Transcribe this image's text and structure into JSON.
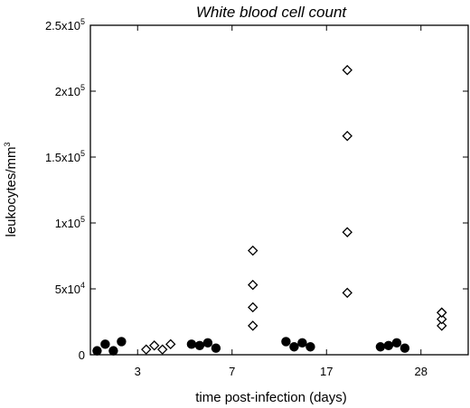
{
  "chart_data": {
    "type": "scatter",
    "title": "White blood cell count",
    "xlabel": "time post-infection (days)",
    "ylabel": "leukocytes/mm3",
    "ylabel_base": "leukocytes/mm",
    "ylabel_sup": "3",
    "categories": [
      "3",
      "7",
      "17",
      "28"
    ],
    "ylim": [
      0,
      250000
    ],
    "y_ticks": [
      {
        "value": 0,
        "label": "0",
        "base": "0",
        "sup": ""
      },
      {
        "value": 50000,
        "label": "5x10^4",
        "base": "5x10",
        "sup": "4"
      },
      {
        "value": 100000,
        "label": "1x10^5",
        "base": "1x10",
        "sup": "5"
      },
      {
        "value": 150000,
        "label": "1.5x10^5",
        "base": "1.5x10",
        "sup": "5"
      },
      {
        "value": 200000,
        "label": "2x10^5",
        "base": "2x10",
        "sup": "5"
      },
      {
        "value": 250000,
        "label": "2.5x10^5",
        "base": "2.5x10",
        "sup": "5"
      }
    ],
    "grid": false,
    "series": [
      {
        "marker": "filled-circle",
        "color": "#000000",
        "groups": [
          {
            "category": "3",
            "values": [
              3000,
              8000,
              3000,
              10000
            ]
          },
          {
            "category": "7",
            "values": [
              8000,
              7000,
              9000,
              5000
            ]
          },
          {
            "category": "17",
            "values": [
              10000,
              6000,
              9000,
              6000
            ]
          },
          {
            "category": "28",
            "values": [
              6000,
              7000,
              9000,
              5000
            ]
          }
        ]
      },
      {
        "marker": "open-diamond",
        "color": "#000000",
        "groups": [
          {
            "category": "3",
            "values": [
              4000,
              7000,
              4000,
              8000
            ]
          },
          {
            "category": "7",
            "values": [
              22000,
              36000,
              53000,
              79000
            ]
          },
          {
            "category": "17",
            "values": [
              47000,
              93000,
              166000,
              216000
            ]
          },
          {
            "category": "28",
            "values": [
              22000,
              27000,
              32000,
              32000
            ]
          }
        ]
      }
    ]
  }
}
